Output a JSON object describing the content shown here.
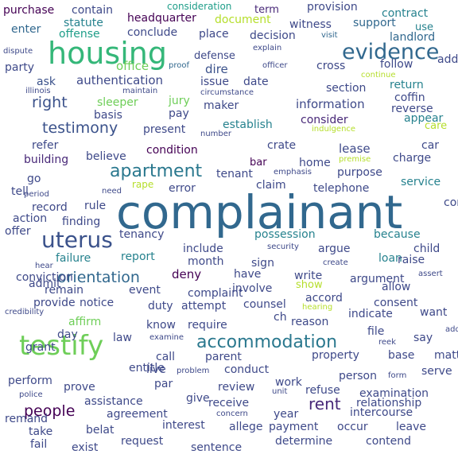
{
  "words": [
    {
      "text": "complainant",
      "color": "#31688e"
    },
    {
      "text": "housing",
      "color": "#35b779"
    },
    {
      "text": "testify",
      "color": "#6ece58"
    },
    {
      "text": "uterus",
      "color": "#3b528b"
    },
    {
      "text": "evidence",
      "color": "#31688e"
    },
    {
      "text": "accommodation",
      "color": "#2a788e"
    },
    {
      "text": "apartment",
      "color": "#2a788e"
    },
    {
      "text": "testimony",
      "color": "#3b528b"
    },
    {
      "text": "orientation",
      "color": "#31688e"
    },
    {
      "text": "people",
      "color": "#440154"
    },
    {
      "text": "rent",
      "color": "#482878"
    },
    {
      "text": "purchase",
      "color": "#440154"
    },
    {
      "text": "contain",
      "color": "#3e4989"
    },
    {
      "text": "consideration",
      "color": "#1f9e89"
    },
    {
      "text": "term",
      "color": "#482878"
    },
    {
      "text": "provision",
      "color": "#3e4989"
    },
    {
      "text": "enter",
      "color": "#31688e"
    },
    {
      "text": "statute",
      "color": "#26828e"
    },
    {
      "text": "headquarter",
      "color": "#440154"
    },
    {
      "text": "document",
      "color": "#b5de2b"
    },
    {
      "text": "witness",
      "color": "#3e4989"
    },
    {
      "text": "support",
      "color": "#31688e"
    },
    {
      "text": "contract",
      "color": "#26828e"
    },
    {
      "text": "use",
      "color": "#26828e"
    },
    {
      "text": "offense",
      "color": "#1f9e89"
    },
    {
      "text": "conclude",
      "color": "#3e4989"
    },
    {
      "text": "place",
      "color": "#3e4989"
    },
    {
      "text": "decision",
      "color": "#3e4989"
    },
    {
      "text": "visit",
      "color": "#31688e"
    },
    {
      "text": "landlord",
      "color": "#31688e"
    },
    {
      "text": "dispute",
      "color": "#3e4989"
    },
    {
      "text": "party",
      "color": "#3e4989"
    },
    {
      "text": "office",
      "color": "#6ece58"
    },
    {
      "text": "proof",
      "color": "#31688e"
    },
    {
      "text": "defense",
      "color": "#3e4989"
    },
    {
      "text": "explain",
      "color": "#3e4989"
    },
    {
      "text": "officer",
      "color": "#3e4989"
    },
    {
      "text": "cross",
      "color": "#3e4989"
    },
    {
      "text": "follow",
      "color": "#3e4989"
    },
    {
      "text": "continue",
      "color": "#b5de2b"
    },
    {
      "text": "dire",
      "color": "#3b528b"
    },
    {
      "text": "ask",
      "color": "#3b528b"
    },
    {
      "text": "authentication",
      "color": "#3e4989"
    },
    {
      "text": "issue",
      "color": "#3e4989"
    },
    {
      "text": "date",
      "color": "#3e4989"
    },
    {
      "text": "section",
      "color": "#3e4989"
    },
    {
      "text": "return",
      "color": "#26828e"
    },
    {
      "text": "address",
      "color": "#3e4989"
    },
    {
      "text": "maintain",
      "color": "#3e4989"
    },
    {
      "text": "circumstance",
      "color": "#3e4989"
    },
    {
      "text": "illinois",
      "color": "#3e4989"
    },
    {
      "text": "right",
      "color": "#3b528b"
    },
    {
      "text": "sleeper",
      "color": "#6ece58"
    },
    {
      "text": "jury",
      "color": "#6ece58"
    },
    {
      "text": "maker",
      "color": "#3e4989"
    },
    {
      "text": "information",
      "color": "#3e4989"
    },
    {
      "text": "coffin",
      "color": "#3e4989"
    },
    {
      "text": "reverse",
      "color": "#3e4989"
    },
    {
      "text": "basis",
      "color": "#3e4989"
    },
    {
      "text": "pay",
      "color": "#3e4989"
    },
    {
      "text": "consider",
      "color": "#482878"
    },
    {
      "text": "appear",
      "color": "#26828e"
    },
    {
      "text": "care",
      "color": "#b5de2b"
    },
    {
      "text": "indulgence",
      "color": "#b5de2b"
    },
    {
      "text": "present",
      "color": "#3e4989"
    },
    {
      "text": "establish",
      "color": "#26828e"
    },
    {
      "text": "number",
      "color": "#3e4989"
    },
    {
      "text": "refer",
      "color": "#3e4989"
    },
    {
      "text": "crate",
      "color": "#3e4989"
    },
    {
      "text": "lease",
      "color": "#3e4989"
    },
    {
      "text": "car",
      "color": "#3e4989"
    },
    {
      "text": "condition",
      "color": "#440154"
    },
    {
      "text": "building",
      "color": "#482878"
    },
    {
      "text": "believe",
      "color": "#3e4989"
    },
    {
      "text": "home",
      "color": "#3e4989"
    },
    {
      "text": "premise",
      "color": "#b5de2b"
    },
    {
      "text": "charge",
      "color": "#3e4989"
    },
    {
      "text": "bar",
      "color": "#440154"
    },
    {
      "text": "purpose",
      "color": "#3e4989"
    },
    {
      "text": "emphasis",
      "color": "#3e4989"
    },
    {
      "text": "go",
      "color": "#3e4989"
    },
    {
      "text": "tell",
      "color": "#3e4989"
    },
    {
      "text": "tenant",
      "color": "#3e4989"
    },
    {
      "text": "rape",
      "color": "#b5de2b"
    },
    {
      "text": "error",
      "color": "#3e4989"
    },
    {
      "text": "claim",
      "color": "#3e4989"
    },
    {
      "text": "telephone",
      "color": "#3e4989"
    },
    {
      "text": "service",
      "color": "#26828e"
    },
    {
      "text": "need",
      "color": "#3e4989"
    },
    {
      "text": "period",
      "color": "#3e4989"
    },
    {
      "text": "rule",
      "color": "#3e4989"
    },
    {
      "text": "record",
      "color": "#3e4989"
    },
    {
      "text": "action",
      "color": "#3e4989"
    },
    {
      "text": "finding",
      "color": "#3e4989"
    },
    {
      "text": "offer",
      "color": "#3e4989"
    },
    {
      "text": "tenancy",
      "color": "#3e4989"
    },
    {
      "text": "possession",
      "color": "#26828e"
    },
    {
      "text": "because",
      "color": "#26828e"
    },
    {
      "text": "control",
      "color": "#3e4989"
    },
    {
      "text": "child",
      "color": "#3e4989"
    },
    {
      "text": "include",
      "color": "#3e4989"
    },
    {
      "text": "security",
      "color": "#3e4989"
    },
    {
      "text": "argue",
      "color": "#3e4989"
    },
    {
      "text": "loan",
      "color": "#26828e"
    },
    {
      "text": "raise",
      "color": "#3e4989"
    },
    {
      "text": "failure",
      "color": "#26828e"
    },
    {
      "text": "report",
      "color": "#26828e"
    },
    {
      "text": "month",
      "color": "#3e4989"
    },
    {
      "text": "sign",
      "color": "#3e4989"
    },
    {
      "text": "create",
      "color": "#3e4989"
    },
    {
      "text": "hear",
      "color": "#3e4989"
    },
    {
      "text": "deny",
      "color": "#440154"
    },
    {
      "text": "have",
      "color": "#3e4989"
    },
    {
      "text": "write",
      "color": "#3e4989"
    },
    {
      "text": "argument",
      "color": "#3e4989"
    },
    {
      "text": "assert",
      "color": "#3e4989"
    },
    {
      "text": "conviction",
      "color": "#3e4989"
    },
    {
      "text": "admit",
      "color": "#3e4989"
    },
    {
      "text": "remain",
      "color": "#3e4989"
    },
    {
      "text": "event",
      "color": "#3e4989"
    },
    {
      "text": "involve",
      "color": "#3e4989"
    },
    {
      "text": "show",
      "color": "#b5de2b"
    },
    {
      "text": "allow",
      "color": "#3e4989"
    },
    {
      "text": "notice",
      "color": "#3e4989"
    },
    {
      "text": "complaint",
      "color": "#3e4989"
    },
    {
      "text": "accord",
      "color": "#3e4989"
    },
    {
      "text": "consent",
      "color": "#3e4989"
    },
    {
      "text": "provide",
      "color": "#3e4989"
    },
    {
      "text": "duty",
      "color": "#3e4989"
    },
    {
      "text": "attempt",
      "color": "#3e4989"
    },
    {
      "text": "counsel",
      "color": "#3e4989"
    },
    {
      "text": "hearing",
      "color": "#b5de2b"
    },
    {
      "text": "want",
      "color": "#3e4989"
    },
    {
      "text": "affirm",
      "color": "#6ece58"
    },
    {
      "text": "indicate",
      "color": "#3e4989"
    },
    {
      "text": "ch",
      "color": "#3e4989"
    },
    {
      "text": "know",
      "color": "#3e4989"
    },
    {
      "text": "require",
      "color": "#3e4989"
    },
    {
      "text": "reason",
      "color": "#3e4989"
    },
    {
      "text": "credibility",
      "color": "#3e4989"
    },
    {
      "text": "day",
      "color": "#3e4989"
    },
    {
      "text": "law",
      "color": "#3e4989"
    },
    {
      "text": "examine",
      "color": "#3e4989"
    },
    {
      "text": "file",
      "color": "#3e4989"
    },
    {
      "text": "say",
      "color": "#3e4989"
    },
    {
      "text": "reek",
      "color": "#3e4989"
    },
    {
      "text": "grant",
      "color": "#3e4989"
    },
    {
      "text": "call",
      "color": "#3e4989"
    },
    {
      "text": "parent",
      "color": "#3e4989"
    },
    {
      "text": "property",
      "color": "#3e4989"
    },
    {
      "text": "base",
      "color": "#3e4989"
    },
    {
      "text": "matter",
      "color": "#3e4989"
    },
    {
      "text": "addition",
      "color": "#3e4989"
    },
    {
      "text": "entitle",
      "color": "#3e4989"
    },
    {
      "text": "live",
      "color": "#3e4989"
    },
    {
      "text": "problem",
      "color": "#3e4989"
    },
    {
      "text": "conduct",
      "color": "#3e4989"
    },
    {
      "text": "serve",
      "color": "#3e4989"
    },
    {
      "text": "perform",
      "color": "#3e4989"
    },
    {
      "text": "par",
      "color": "#3e4989"
    },
    {
      "text": "person",
      "color": "#3e4989"
    },
    {
      "text": "form",
      "color": "#3e4989"
    },
    {
      "text": "prove",
      "color": "#3e4989"
    },
    {
      "text": "review",
      "color": "#3e4989"
    },
    {
      "text": "work",
      "color": "#3e4989"
    },
    {
      "text": "police",
      "color": "#3e4989"
    },
    {
      "text": "unit",
      "color": "#3e4989"
    },
    {
      "text": "refuse",
      "color": "#3e4989"
    },
    {
      "text": "examination",
      "color": "#3e4989"
    },
    {
      "text": "assistance",
      "color": "#3e4989"
    },
    {
      "text": "give",
      "color": "#3e4989"
    },
    {
      "text": "receive",
      "color": "#3e4989"
    },
    {
      "text": "relationship",
      "color": "#3e4989"
    },
    {
      "text": "agreement",
      "color": "#3e4989"
    },
    {
      "text": "concern",
      "color": "#3e4989"
    },
    {
      "text": "year",
      "color": "#3e4989"
    },
    {
      "text": "intercourse",
      "color": "#3e4989"
    },
    {
      "text": "remand",
      "color": "#3e4989"
    },
    {
      "text": "interest",
      "color": "#3e4989"
    },
    {
      "text": "allege",
      "color": "#3e4989"
    },
    {
      "text": "take",
      "color": "#3e4989"
    },
    {
      "text": "request",
      "color": "#3e4989"
    },
    {
      "text": "payment",
      "color": "#3e4989"
    },
    {
      "text": "occur",
      "color": "#3e4989"
    },
    {
      "text": "leave",
      "color": "#3e4989"
    },
    {
      "text": "fail",
      "color": "#3e4989"
    },
    {
      "text": "belat",
      "color": "#3e4989"
    },
    {
      "text": "determine",
      "color": "#3e4989"
    },
    {
      "text": "contend",
      "color": "#3e4989"
    },
    {
      "text": "exist",
      "color": "#3e4989"
    },
    {
      "text": "sentence",
      "color": "#3e4989"
    }
  ]
}
